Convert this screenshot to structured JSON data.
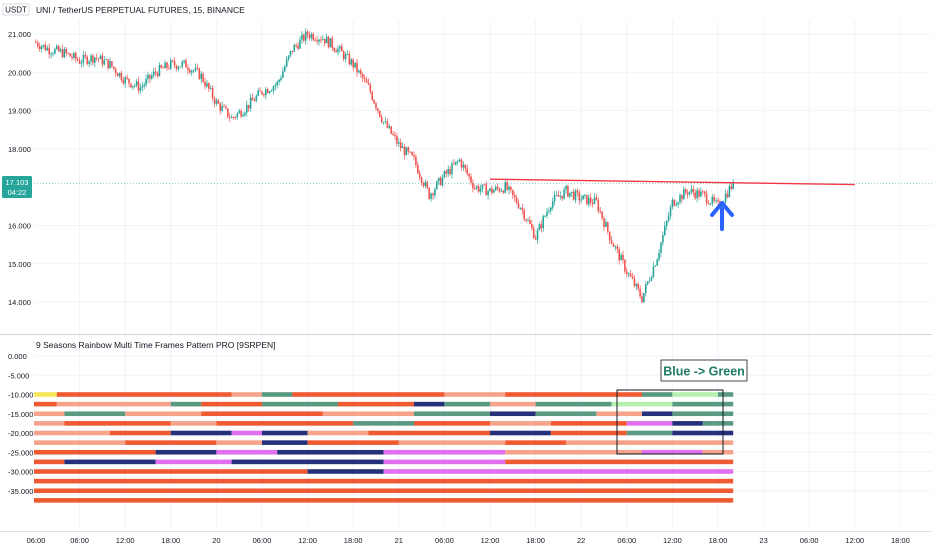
{
  "header": {
    "currency": "USDT",
    "title": "UNI / TetherUS PERPETUAL FUTURES, 15, BINANCE"
  },
  "price_badge": {
    "price": "17.103",
    "countdown": "04:22"
  },
  "indicator": {
    "title": "9 Seasons Rainbow Multi Time Frames Pattern PRO [9SRPEN]"
  },
  "annotation": {
    "text": "Blue -> Green"
  },
  "colors": {
    "up": "#26a69a",
    "down": "#ef5350",
    "trendline": "#f23645",
    "arrow": "#2962ff",
    "badge": "#26a69a",
    "annotation_text": "#1f7a64",
    "grid": "#f0f3fa",
    "band_orange": "#f05a32",
    "band_salmon": "#f5a38a",
    "band_navy": "#24307a",
    "band_violet": "#e070f0",
    "band_teal": "#5a9a80",
    "band_lightgreen": "#b5f0b0",
    "band_yellow": "#f5e65a"
  },
  "chart_data": [
    {
      "type": "candlestick",
      "title": "UNI / TetherUS PERPETUAL FUTURES, 15, BINANCE",
      "y_ticks": [
        "21.000",
        "20.000",
        "19.000",
        "18.000",
        "16.000",
        "15.000",
        "14.000"
      ],
      "ylim": [
        13.6,
        21.3
      ],
      "x_ticks": [
        "06:00",
        "12:00",
        "18:00",
        "20",
        "06:00",
        "12:00",
        "18:00",
        "21",
        "06:00",
        "12:00",
        "18:00",
        "22",
        "06:00",
        "12:00",
        "18:00",
        "23",
        "06:00",
        "12:00",
        "18:00"
      ],
      "x_tick_hours": [
        6,
        12,
        18,
        24,
        30,
        36,
        42,
        48,
        54,
        60,
        66,
        72,
        78,
        84,
        90,
        96,
        102,
        108,
        114
      ],
      "price_path_hours": [
        0,
        2,
        4,
        6,
        8,
        10,
        12,
        14,
        16,
        18,
        20,
        22,
        24,
        26,
        28,
        30,
        32,
        34,
        36,
        38,
        40,
        42,
        44,
        46,
        48,
        50,
        52,
        54,
        56,
        58,
        60,
        62,
        64,
        66,
        68,
        70,
        72,
        74,
        76,
        78,
        80,
        82,
        84,
        86,
        88,
        90,
        92
      ],
      "price_path_values": [
        20.8,
        20.6,
        20.5,
        20.3,
        20.4,
        20.2,
        19.8,
        19.6,
        20.0,
        20.2,
        20.2,
        19.9,
        19.2,
        18.8,
        19.1,
        19.5,
        19.7,
        20.6,
        21.0,
        20.9,
        20.6,
        20.2,
        19.6,
        18.7,
        18.1,
        17.7,
        16.8,
        17.3,
        17.7,
        17.0,
        16.9,
        17.0,
        16.5,
        15.7,
        16.6,
        16.9,
        16.7,
        16.6,
        15.6,
        14.8,
        14.1,
        15.2,
        16.6,
        16.9,
        16.8,
        16.5,
        17.1
      ],
      "last_price": 17.103,
      "trendline": {
        "from": {
          "hour": 60,
          "price": 17.21
        },
        "to": {
          "hour": 108,
          "price": 17.07
        }
      }
    },
    {
      "type": "bands",
      "title": "9 Seasons Rainbow Multi Time Frames Pattern PRO [9SRPEN]",
      "y_ticks": [
        "0.000",
        "-5.000",
        "-10.000",
        "-15.000",
        "-20.000",
        "-25.000",
        "-30.000",
        "-35.000"
      ],
      "ylim": [
        -38,
        0
      ],
      "band_levels": [
        -10,
        -12.5,
        -15,
        -17.5,
        -20,
        -22.5,
        -25,
        -27.5,
        -30,
        -32.5,
        -35,
        -37.5
      ],
      "band_segments": [
        [
          [
            "yellow",
            0,
            3
          ],
          [
            "orange",
            3,
            26
          ],
          [
            "salmon",
            26,
            30
          ],
          [
            "teal",
            30,
            34
          ],
          [
            "orange",
            34,
            54
          ],
          [
            "salmon",
            54,
            62
          ],
          [
            "orange",
            62,
            80
          ],
          [
            "teal",
            80,
            84
          ],
          [
            "lightgreen",
            84,
            90
          ],
          [
            "teal",
            90,
            92
          ]
        ],
        [
          [
            "orange",
            0,
            3
          ],
          [
            "salmon",
            3,
            18
          ],
          [
            "teal",
            18,
            22
          ],
          [
            "orange",
            22,
            30
          ],
          [
            "teal",
            30,
            40
          ],
          [
            "orange",
            40,
            50
          ],
          [
            "navy",
            50,
            54
          ],
          [
            "teal",
            54,
            60
          ],
          [
            "salmon",
            60,
            66
          ],
          [
            "teal",
            66,
            76
          ],
          [
            "lightgreen",
            76,
            84
          ],
          [
            "teal",
            84,
            92
          ]
        ],
        [
          [
            "salmon",
            0,
            4
          ],
          [
            "teal",
            4,
            12
          ],
          [
            "salmon",
            12,
            22
          ],
          [
            "orange",
            22,
            38
          ],
          [
            "salmon",
            38,
            50
          ],
          [
            "teal",
            50,
            60
          ],
          [
            "navy",
            60,
            66
          ],
          [
            "teal",
            66,
            74
          ],
          [
            "salmon",
            74,
            80
          ],
          [
            "navy",
            80,
            84
          ],
          [
            "teal",
            84,
            92
          ]
        ],
        [
          [
            "salmon",
            0,
            4
          ],
          [
            "orange",
            4,
            18
          ],
          [
            "salmon",
            18,
            24
          ],
          [
            "orange",
            24,
            42
          ],
          [
            "teal",
            42,
            50
          ],
          [
            "orange",
            50,
            60
          ],
          [
            "salmon",
            60,
            68
          ],
          [
            "orange",
            68,
            78
          ],
          [
            "violet",
            78,
            84
          ],
          [
            "navy",
            84,
            88
          ],
          [
            "teal",
            88,
            92
          ]
        ],
        [
          [
            "salmon",
            0,
            10
          ],
          [
            "orange",
            10,
            18
          ],
          [
            "navy",
            18,
            26
          ],
          [
            "violet",
            26,
            30
          ],
          [
            "navy",
            30,
            36
          ],
          [
            "salmon",
            36,
            44
          ],
          [
            "orange",
            44,
            60
          ],
          [
            "navy",
            60,
            68
          ],
          [
            "orange",
            68,
            78
          ],
          [
            "teal",
            78,
            84
          ],
          [
            "navy",
            84,
            92
          ]
        ],
        [
          [
            "salmon",
            0,
            12
          ],
          [
            "orange",
            12,
            24
          ],
          [
            "salmon",
            24,
            30
          ],
          [
            "navy",
            30,
            36
          ],
          [
            "orange",
            36,
            48
          ],
          [
            "salmon",
            48,
            62
          ],
          [
            "orange",
            62,
            70
          ],
          [
            "salmon",
            70,
            92
          ]
        ],
        [
          [
            "orange",
            0,
            16
          ],
          [
            "navy",
            16,
            24
          ],
          [
            "violet",
            24,
            32
          ],
          [
            "navy",
            32,
            46
          ],
          [
            "violet",
            46,
            62
          ],
          [
            "salmon",
            62,
            80
          ],
          [
            "violet",
            80,
            88
          ],
          [
            "salmon",
            88,
            92
          ]
        ],
        [
          [
            "orange",
            0,
            4
          ],
          [
            "navy",
            4,
            16
          ],
          [
            "violet",
            16,
            26
          ],
          [
            "navy",
            26,
            46
          ],
          [
            "violet",
            46,
            62
          ],
          [
            "orange",
            62,
            92
          ]
        ],
        [
          [
            "orange",
            0,
            36
          ],
          [
            "navy",
            36,
            46
          ],
          [
            "violet",
            46,
            92
          ]
        ],
        [
          [
            "orange",
            0,
            92
          ]
        ],
        [
          [
            "orange",
            0,
            92
          ]
        ],
        [
          [
            "orange",
            0,
            92
          ]
        ]
      ]
    }
  ]
}
